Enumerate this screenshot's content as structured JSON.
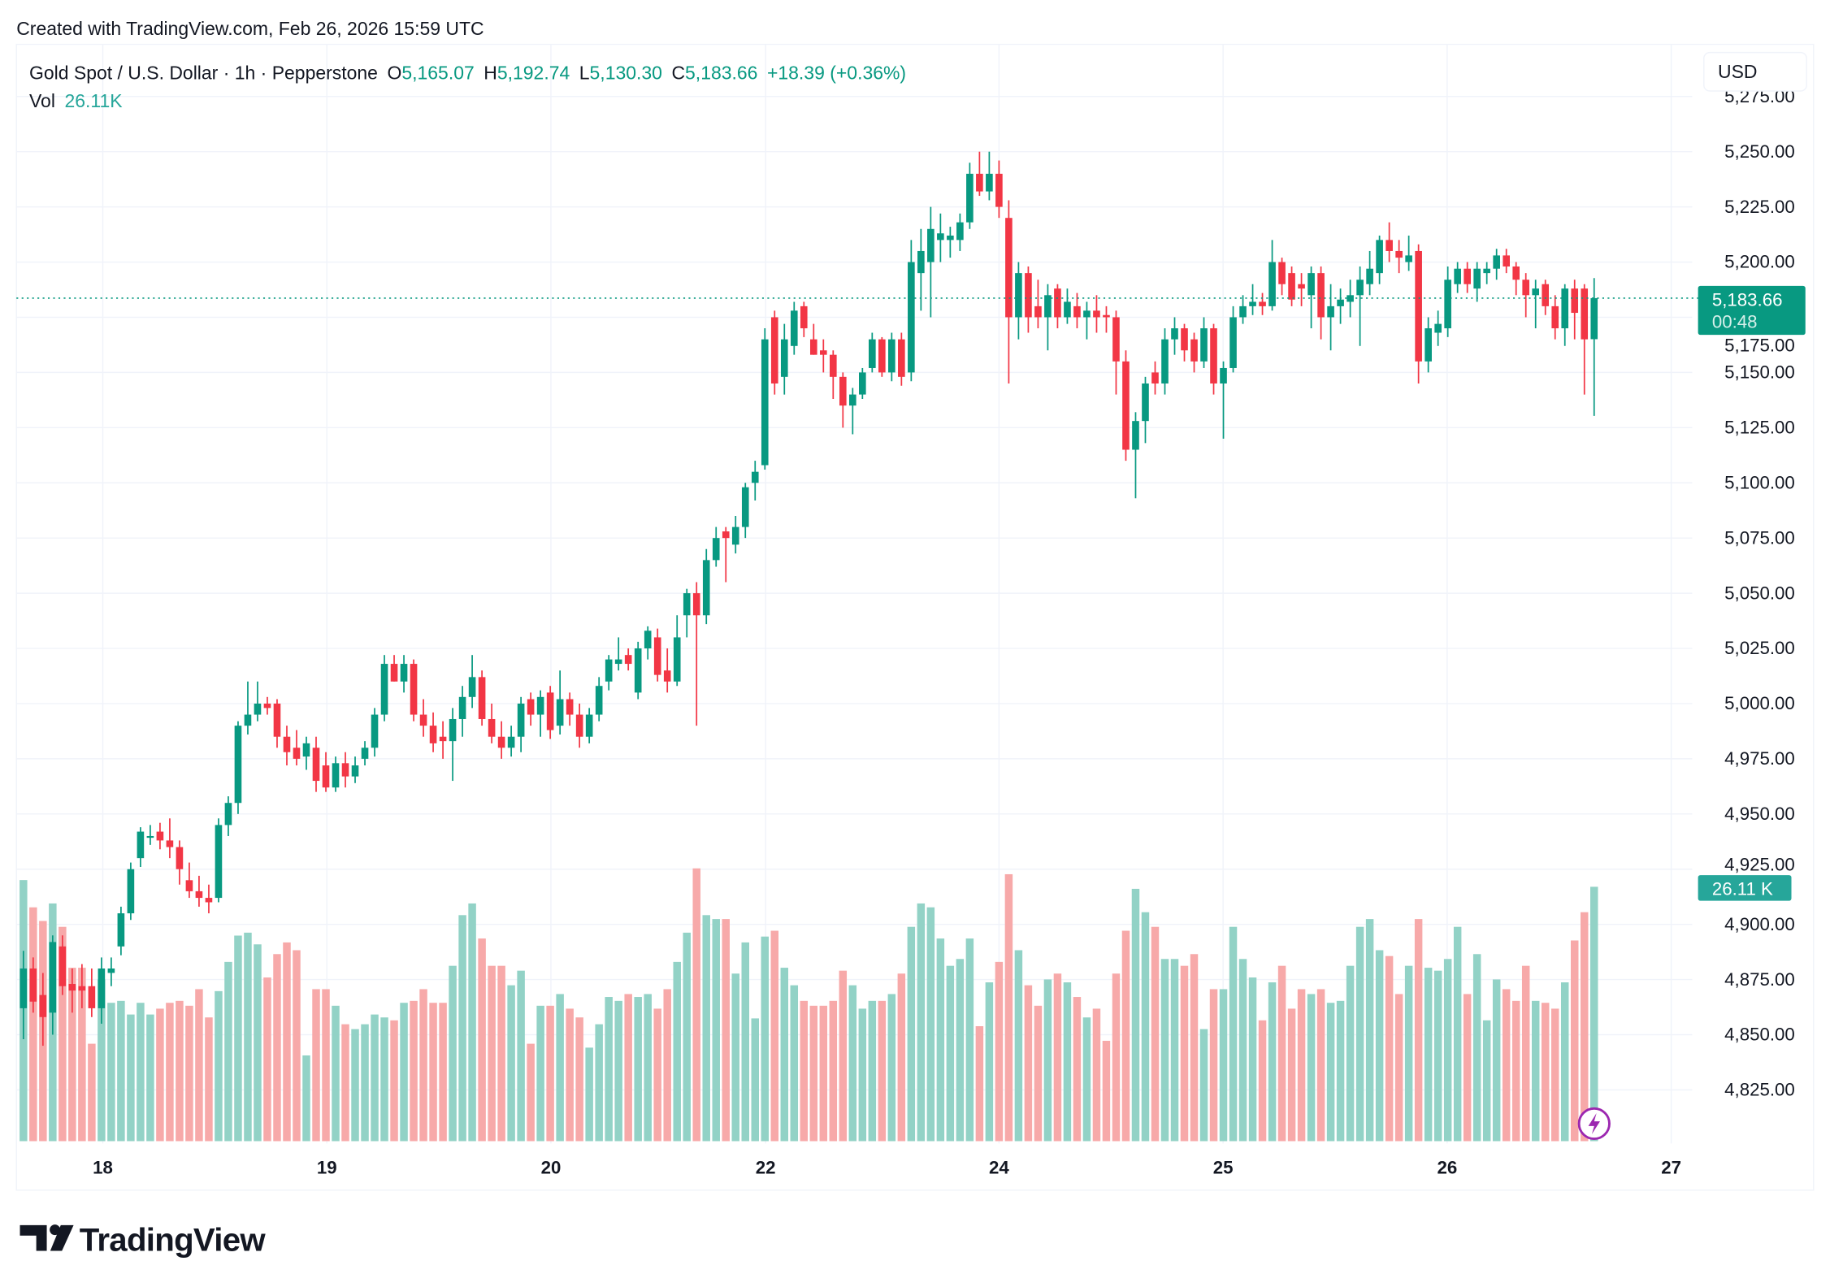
{
  "watermark": "Created with TradingView.com, Feb 26, 2026 15:59 UTC",
  "legend": {
    "symbol": "Gold Spot / U.S. Dollar · 1h · Pepperstone",
    "o_label": "O",
    "o_value": "5,165.07",
    "h_label": "H",
    "h_value": "5,192.74",
    "l_label": "L",
    "l_value": "5,130.30",
    "c_label": "C",
    "c_value": "5,183.66",
    "change": "+18.39 (+0.36%)",
    "vol_label": "Vol",
    "vol_value": "26.11K"
  },
  "currency_button": "USD",
  "last_price": {
    "price": "5,183.66",
    "countdown": "00:48"
  },
  "last_volume_label": "26.11 K",
  "logo_text": "TradingView",
  "colors": {
    "up": "#089981",
    "down": "#F23645",
    "vol_up": "#92d2c6",
    "vol_down": "#f7a9a9"
  },
  "chart_data": {
    "type": "candlestick",
    "interval": "1h",
    "grid": true,
    "y_ticks": [
      "5,275.00",
      "5,250.00",
      "5,225.00",
      "5,200.00",
      "5,175.00",
      "5,150.00",
      "5,125.00",
      "5,100.00",
      "5,075.00",
      "5,050.00",
      "5,025.00",
      "5,000.00",
      "4,975.00",
      "4,950.00",
      "4,925.00",
      "4,900.00",
      "4,875.00",
      "4,850.00",
      "4,825.00"
    ],
    "y_tick_values": [
      5275,
      5250,
      5225,
      5200,
      5175,
      5150,
      5125,
      5100,
      5075,
      5050,
      5025,
      5000,
      4975,
      4950,
      4925,
      4900,
      4875,
      4850,
      4825
    ],
    "x_ticks": [
      "18",
      "19",
      "20",
      "22",
      "24",
      "25",
      "26",
      "27"
    ],
    "x_tick_candle_index": [
      8,
      31,
      54,
      76,
      100,
      123,
      146,
      169
    ],
    "ohlc": [
      [
        4862,
        4888,
        4848,
        4880
      ],
      [
        4880,
        4885,
        4860,
        4865
      ],
      [
        4868,
        4878,
        4845,
        4858
      ],
      [
        4860,
        4895,
        4850,
        4892
      ],
      [
        4890,
        4895,
        4868,
        4872
      ],
      [
        4873,
        4880,
        4860,
        4870
      ],
      [
        4872,
        4882,
        4862,
        4870
      ],
      [
        4872,
        4880,
        4858,
        4862
      ],
      [
        4862,
        4885,
        4855,
        4880
      ],
      [
        4878,
        4885,
        4872,
        4880
      ],
      [
        4890,
        4908,
        4886,
        4905
      ],
      [
        4905,
        4928,
        4902,
        4925
      ],
      [
        4930,
        4944,
        4926,
        4942
      ],
      [
        4940,
        4945,
        4936,
        4940
      ],
      [
        4942,
        4946,
        4934,
        4938
      ],
      [
        4938,
        4948,
        4930,
        4935
      ],
      [
        4935,
        4938,
        4918,
        4925
      ],
      [
        4920,
        4928,
        4912,
        4915
      ],
      [
        4915,
        4922,
        4908,
        4912
      ],
      [
        4912,
        4918,
        4905,
        4910
      ],
      [
        4912,
        4948,
        4910,
        4945
      ],
      [
        4945,
        4958,
        4940,
        4955
      ],
      [
        4955,
        4992,
        4950,
        4990
      ],
      [
        4990,
        5010,
        4986,
        4995
      ],
      [
        4995,
        5010,
        4992,
        5000
      ],
      [
        5000,
        5003,
        4995,
        4998
      ],
      [
        5000,
        5002,
        4980,
        4985
      ],
      [
        4985,
        4990,
        4972,
        4978
      ],
      [
        4980,
        4988,
        4972,
        4975
      ],
      [
        4976,
        4985,
        4970,
        4982
      ],
      [
        4980,
        4985,
        4960,
        4965
      ],
      [
        4972,
        4978,
        4960,
        4962
      ],
      [
        4962,
        4976,
        4960,
        4973
      ],
      [
        4973,
        4978,
        4962,
        4967
      ],
      [
        4967,
        4976,
        4964,
        4972
      ],
      [
        4975,
        4983,
        4972,
        4980
      ],
      [
        4980,
        4998,
        4976,
        4995
      ],
      [
        4995,
        5022,
        4992,
        5018
      ],
      [
        5018,
        5022,
        5010,
        5010
      ],
      [
        5010,
        5022,
        5005,
        5018
      ],
      [
        5018,
        5020,
        4992,
        4995
      ],
      [
        4995,
        5002,
        4985,
        4990
      ],
      [
        4990,
        4996,
        4978,
        4982
      ],
      [
        4985,
        4992,
        4975,
        4983
      ],
      [
        4983,
        4998,
        4965,
        4993
      ],
      [
        4993,
        5008,
        4985,
        5003
      ],
      [
        5003,
        5022,
        4998,
        5012
      ],
      [
        5012,
        5015,
        4990,
        4993
      ],
      [
        4993,
        5000,
        4982,
        4985
      ],
      [
        4985,
        4992,
        4975,
        4980
      ],
      [
        4980,
        4990,
        4976,
        4985
      ],
      [
        4985,
        5003,
        4978,
        5000
      ],
      [
        5002,
        5005,
        4990,
        4995
      ],
      [
        4995,
        5006,
        4985,
        5003
      ],
      [
        5005,
        5008,
        4984,
        4988
      ],
      [
        4990,
        5015,
        4986,
        5002
      ],
      [
        5002,
        5005,
        4990,
        4995
      ],
      [
        4995,
        5000,
        4980,
        4985
      ],
      [
        4985,
        4998,
        4982,
        4995
      ],
      [
        4995,
        5012,
        4992,
        5008
      ],
      [
        5010,
        5022,
        5006,
        5020
      ],
      [
        5018,
        5030,
        5015,
        5020
      ],
      [
        5022,
        5025,
        5015,
        5018
      ],
      [
        5005,
        5028,
        5002,
        5025
      ],
      [
        5025,
        5035,
        5020,
        5033
      ],
      [
        5030,
        5034,
        5010,
        5013
      ],
      [
        5015,
        5025,
        5005,
        5010
      ],
      [
        5010,
        5040,
        5008,
        5030
      ],
      [
        5040,
        5052,
        5030,
        5050
      ],
      [
        5050,
        5055,
        4990,
        5040
      ],
      [
        5040,
        5070,
        5036,
        5065
      ],
      [
        5065,
        5080,
        5062,
        5075
      ],
      [
        5078,
        5080,
        5055,
        5075
      ],
      [
        5072,
        5085,
        5068,
        5080
      ],
      [
        5080,
        5100,
        5075,
        5098
      ],
      [
        5100,
        5110,
        5092,
        5105
      ],
      [
        5108,
        5170,
        5106,
        5165
      ],
      [
        5175,
        5178,
        5140,
        5145
      ],
      [
        5148,
        5172,
        5140,
        5165
      ],
      [
        5162,
        5182,
        5158,
        5178
      ],
      [
        5180,
        5182,
        5166,
        5170
      ],
      [
        5165,
        5172,
        5158,
        5158
      ],
      [
        5160,
        5165,
        5150,
        5158
      ],
      [
        5158,
        5160,
        5138,
        5148
      ],
      [
        5148,
        5150,
        5125,
        5135
      ],
      [
        5135,
        5143,
        5122,
        5140
      ],
      [
        5140,
        5152,
        5138,
        5150
      ],
      [
        5152,
        5168,
        5150,
        5165
      ],
      [
        5165,
        5166,
        5148,
        5150
      ],
      [
        5150,
        5168,
        5146,
        5165
      ],
      [
        5165,
        5168,
        5144,
        5148
      ],
      [
        5150,
        5210,
        5146,
        5200
      ],
      [
        5195,
        5215,
        5178,
        5205
      ],
      [
        5200,
        5225,
        5175,
        5215
      ],
      [
        5210,
        5222,
        5200,
        5213
      ],
      [
        5210,
        5216,
        5202,
        5212
      ],
      [
        5210,
        5222,
        5205,
        5218
      ],
      [
        5218,
        5245,
        5215,
        5240
      ],
      [
        5240,
        5250,
        5230,
        5232
      ],
      [
        5232,
        5250,
        5228,
        5240
      ],
      [
        5240,
        5246,
        5220,
        5225
      ],
      [
        5220,
        5228,
        5145,
        5175
      ],
      [
        5175,
        5200,
        5165,
        5195
      ],
      [
        5195,
        5198,
        5168,
        5175
      ],
      [
        5180,
        5192,
        5170,
        5175
      ],
      [
        5175,
        5190,
        5160,
        5185
      ],
      [
        5188,
        5190,
        5170,
        5175
      ],
      [
        5175,
        5188,
        5172,
        5182
      ],
      [
        5180,
        5186,
        5170,
        5175
      ],
      [
        5175,
        5182,
        5165,
        5178
      ],
      [
        5178,
        5185,
        5168,
        5175
      ],
      [
        5176,
        5180,
        5168,
        5175
      ],
      [
        5175,
        5178,
        5140,
        5155
      ],
      [
        5155,
        5160,
        5110,
        5115
      ],
      [
        5115,
        5132,
        5093,
        5128
      ],
      [
        5128,
        5148,
        5118,
        5145
      ],
      [
        5150,
        5155,
        5140,
        5145
      ],
      [
        5145,
        5170,
        5140,
        5165
      ],
      [
        5165,
        5175,
        5158,
        5170
      ],
      [
        5170,
        5172,
        5155,
        5160
      ],
      [
        5165,
        5168,
        5150,
        5155
      ],
      [
        5155,
        5175,
        5152,
        5170
      ],
      [
        5170,
        5172,
        5140,
        5145
      ],
      [
        5145,
        5155,
        5120,
        5152
      ],
      [
        5152,
        5180,
        5150,
        5175
      ],
      [
        5175,
        5185,
        5172,
        5180
      ],
      [
        5180,
        5190,
        5176,
        5182
      ],
      [
        5182,
        5186,
        5176,
        5180
      ],
      [
        5180,
        5210,
        5178,
        5200
      ],
      [
        5200,
        5202,
        5185,
        5190
      ],
      [
        5195,
        5198,
        5180,
        5183
      ],
      [
        5190,
        5195,
        5180,
        5188
      ],
      [
        5185,
        5198,
        5170,
        5195
      ],
      [
        5195,
        5198,
        5165,
        5175
      ],
      [
        5175,
        5190,
        5160,
        5180
      ],
      [
        5180,
        5188,
        5172,
        5183
      ],
      [
        5182,
        5192,
        5175,
        5185
      ],
      [
        5185,
        5198,
        5162,
        5192
      ],
      [
        5190,
        5205,
        5185,
        5197
      ],
      [
        5195,
        5212,
        5190,
        5210
      ],
      [
        5210,
        5218,
        5200,
        5205
      ],
      [
        5205,
        5210,
        5195,
        5202
      ],
      [
        5200,
        5212,
        5196,
        5203
      ],
      [
        5205,
        5208,
        5145,
        5155
      ],
      [
        5155,
        5175,
        5150,
        5170
      ],
      [
        5168,
        5178,
        5162,
        5172
      ],
      [
        5170,
        5198,
        5166,
        5192
      ],
      [
        5190,
        5200,
        5186,
        5197
      ],
      [
        5197,
        5200,
        5186,
        5190
      ],
      [
        5188,
        5200,
        5182,
        5197
      ],
      [
        5195,
        5200,
        5190,
        5197
      ],
      [
        5197,
        5206,
        5192,
        5203
      ],
      [
        5203,
        5206,
        5195,
        5198
      ],
      [
        5198,
        5200,
        5185,
        5192
      ],
      [
        5192,
        5195,
        5175,
        5185
      ],
      [
        5185,
        5192,
        5170,
        5188
      ],
      [
        5190,
        5192,
        5176,
        5180
      ],
      [
        5180,
        5185,
        5165,
        5170
      ],
      [
        5170,
        5190,
        5162,
        5188
      ],
      [
        5188,
        5192,
        5165,
        5177
      ],
      [
        5188,
        5190,
        5140,
        5165
      ],
      [
        5165.07,
        5192.74,
        5130.3,
        5183.66
      ]
    ],
    "volume_k": [
      26.8,
      24.0,
      22.6,
      24.4,
      22.0,
      17.8,
      17.8,
      10.0,
      16.6,
      14.2,
      14.4,
      13.0,
      14.2,
      13.0,
      13.6,
      14.2,
      14.4,
      13.9,
      15.6,
      12.7,
      15.4,
      18.4,
      21.1,
      21.4,
      20.2,
      16.8,
      19.2,
      20.4,
      19.6,
      8.8,
      15.6,
      15.6,
      13.9,
      12.0,
      11.5,
      12.0,
      13.0,
      12.7,
      12.4,
      14.2,
      14.4,
      15.6,
      14.2,
      14.2,
      18.0,
      23.2,
      24.4,
      20.8,
      18.0,
      18.0,
      16.0,
      17.5,
      10.0,
      13.9,
      13.9,
      15.1,
      13.6,
      12.7,
      9.6,
      12.0,
      14.8,
      14.4,
      15.1,
      14.8,
      15.1,
      13.6,
      15.6,
      18.4,
      21.4,
      28.0,
      23.2,
      22.8,
      22.8,
      17.2,
      20.4,
      12.6,
      21.0,
      21.6,
      17.8,
      16.0,
      14.4,
      13.9,
      13.9,
      14.4,
      17.5,
      16.0,
      13.6,
      14.4,
      14.4,
      15.1,
      17.2,
      22.0,
      24.4,
      24.0,
      20.8,
      18.0,
      18.7,
      20.8,
      11.8,
      16.3,
      18.4,
      27.4,
      19.6,
      16.0,
      13.9,
      16.6,
      17.2,
      16.3,
      14.8,
      12.7,
      13.6,
      10.3,
      17.2,
      21.6,
      25.9,
      23.5,
      22.0,
      18.7,
      18.7,
      18.0,
      19.2,
      11.5,
      15.6,
      15.6,
      22.0,
      18.7,
      16.8,
      12.4,
      16.3,
      18.0,
      13.6,
      15.6,
      15.1,
      15.6,
      14.2,
      14.4,
      18.0,
      22.0,
      22.8,
      19.6,
      19.0,
      15.1,
      18.0,
      22.8,
      17.8,
      17.5,
      18.7,
      22.0,
      15.1,
      19.2,
      12.4,
      16.6,
      15.6,
      14.4,
      18.0,
      14.4,
      14.2,
      13.6,
      16.3,
      20.6,
      23.5,
      26.11
    ],
    "last_close": 5183.66,
    "last_volume_k": 26.11
  }
}
